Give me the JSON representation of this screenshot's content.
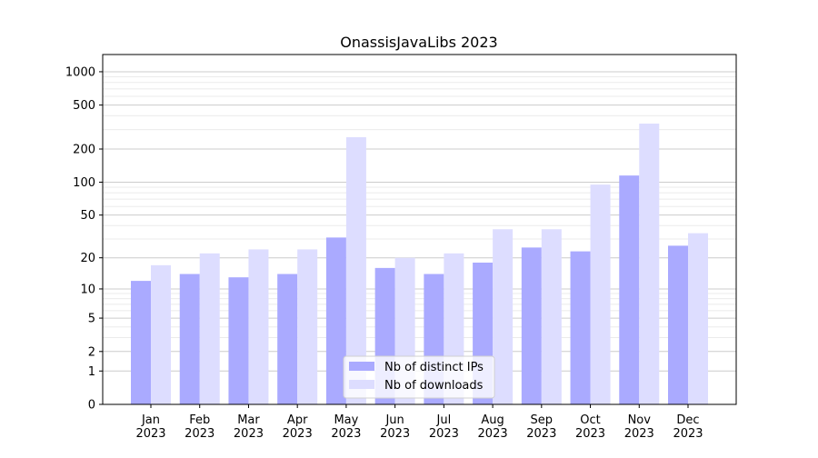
{
  "chart_data": {
    "type": "bar",
    "title": "OnassisJavaLibs 2023",
    "xlabel": "",
    "ylabel": "",
    "yscale": "symlog (log10(1+y))",
    "ylim": [
      0,
      1300
    ],
    "yticks": [
      0,
      1,
      2,
      5,
      10,
      20,
      50,
      100,
      200,
      500,
      1000
    ],
    "grid": true,
    "legend_placement": "bottom-center",
    "categories": [
      "Jan\n2023",
      "Feb\n2023",
      "Mar\n2023",
      "Apr\n2023",
      "May\n2023",
      "Jun\n2023",
      "Jul\n2023",
      "Aug\n2023",
      "Sep\n2023",
      "Oct\n2023",
      "Nov\n2023",
      "Dec\n2023"
    ],
    "series": [
      {
        "name": "Nb of distinct IPs",
        "color": "#aaaaff",
        "values": [
          12,
          14,
          13,
          14,
          31,
          16,
          14,
          18,
          25,
          23,
          115,
          26
        ]
      },
      {
        "name": "Nb of downloads",
        "color": "#ddddff",
        "values": [
          17,
          22,
          24,
          24,
          256,
          20,
          22,
          37,
          37,
          95,
          340,
          34
        ]
      }
    ]
  }
}
